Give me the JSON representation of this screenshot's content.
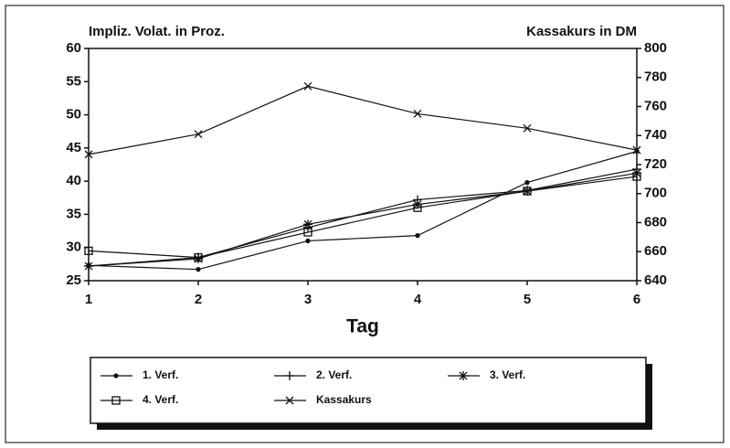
{
  "chart_data": {
    "type": "line",
    "ylabel": "Impliz. Volat. in Proz.",
    "y2label": "Kassakurs in DM",
    "xlabel": "Tag",
    "x": [
      1,
      2,
      3,
      4,
      5,
      6
    ],
    "xlim": [
      1,
      6
    ],
    "xticks": [
      1,
      2,
      3,
      4,
      5,
      6
    ],
    "ylim": [
      25,
      60
    ],
    "yticks": [
      25,
      30,
      35,
      40,
      45,
      50,
      55,
      60
    ],
    "y2lim": [
      640,
      800
    ],
    "y2ticks": [
      640,
      660,
      680,
      700,
      720,
      740,
      760,
      780,
      800
    ],
    "series": [
      {
        "name": "1. Verf.",
        "color": "#111111",
        "marker": "dot",
        "values": [
          27.3,
          26.7,
          31,
          31.8,
          39.8,
          44.5
        ]
      },
      {
        "name": "2. Verf.",
        "color": "#111111",
        "marker": "plus",
        "values": [
          27.2,
          28.5,
          33,
          37.2,
          38.6,
          41.8
        ]
      },
      {
        "name": "3. Verf.",
        "color": "#111111",
        "marker": "star",
        "values": [
          27.2,
          28.3,
          33.5,
          36.5,
          38.5,
          41.2
        ]
      },
      {
        "name": "4. Verf.",
        "color": "#111111",
        "marker": "square",
        "values": [
          29.5,
          28.5,
          32.3,
          36,
          38.5,
          40.7
        ]
      },
      {
        "name": "Kassakurs",
        "color": "#111111",
        "marker": "cross",
        "axis": "y2",
        "values": [
          727,
          741,
          774,
          755,
          745,
          730
        ]
      }
    ]
  }
}
